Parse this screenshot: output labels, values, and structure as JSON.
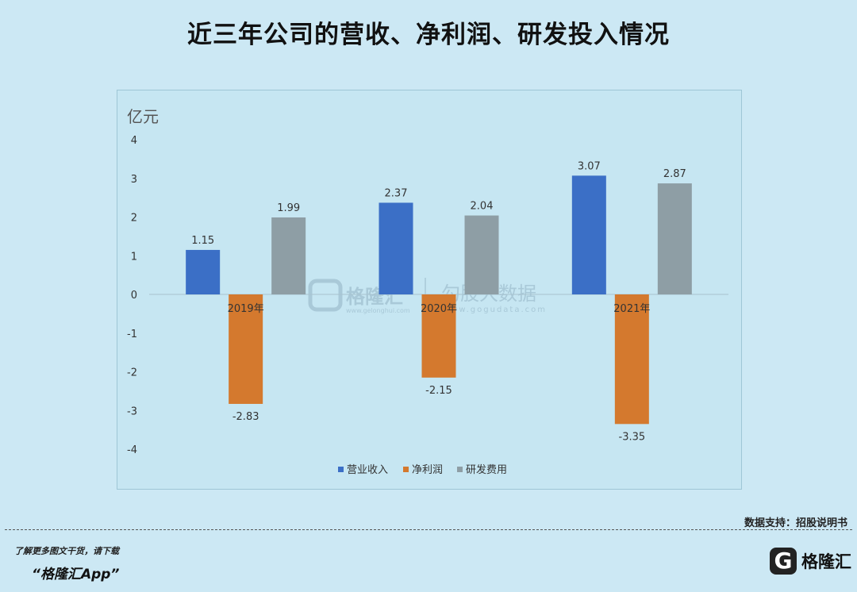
{
  "page": {
    "title": "近三年公司的营收、净利润、研发投入情况",
    "source": "数据支持：招股说明书",
    "promo_line1": "了解更多图文干货，请下载",
    "promo_line2": "“格隆汇App”",
    "brand_icon_letter": "G",
    "brand_name": "格隆汇",
    "watermark_brand": "格隆汇",
    "watermark_brand_url": "www.gelonghui.com",
    "watermark_partner": "勾股大数据",
    "watermark_partner_url": "www.gogudata.com"
  },
  "chart_data": {
    "type": "bar",
    "title": "",
    "ylabel": "亿元",
    "xlabel": "",
    "categories": [
      "2019年",
      "2020年",
      "2021年"
    ],
    "ylim": [
      -4,
      4
    ],
    "yticks": [
      4,
      3,
      2,
      1,
      0,
      -1,
      -2,
      -3,
      -4
    ],
    "ytick_labels": [
      "4",
      "3",
      "2",
      "1",
      "0",
      "-1",
      "-2",
      "-3",
      "-4"
    ],
    "legend_position": "bottom",
    "grid": false,
    "series": [
      {
        "name": "营业收入",
        "color": "#3b6fc6",
        "values": [
          1.15,
          2.37,
          3.07
        ],
        "labels": [
          "1.15",
          "2.37",
          "3.07"
        ]
      },
      {
        "name": "净利润",
        "color": "#d4792e",
        "values": [
          -2.83,
          -2.15,
          -3.35
        ],
        "labels": [
          "-2.83",
          "-2.15",
          "-3.35"
        ]
      },
      {
        "name": "研发费用",
        "color": "#8e9ea5",
        "values": [
          1.99,
          2.04,
          2.87
        ],
        "labels": [
          "1.99",
          "2.04",
          "2.87"
        ]
      }
    ]
  }
}
